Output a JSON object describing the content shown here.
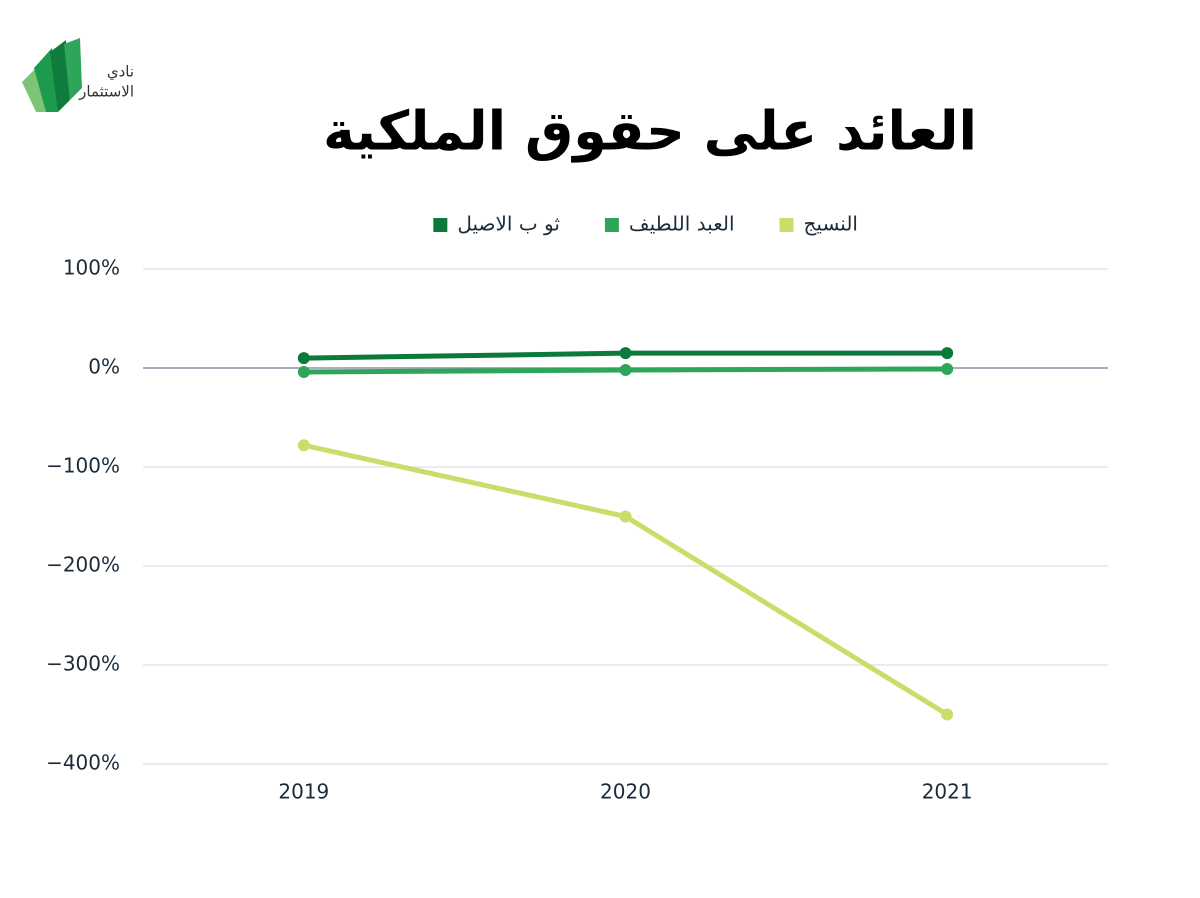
{
  "logo": {
    "line1": "نادي",
    "line2": "الاستثمار"
  },
  "chart_data": {
    "type": "line",
    "title": "العائد على حقوق الملكية",
    "categories": [
      "2019",
      "2020",
      "2021"
    ],
    "series": [
      {
        "name": "النسيج",
        "color": "#c8de6a",
        "values": [
          -78,
          -150,
          -350
        ]
      },
      {
        "name": "العبد اللطيف",
        "color": "#2ea65a",
        "values": [
          -4,
          -2,
          -1
        ]
      },
      {
        "name": "ثو ب الاصيل",
        "color": "#0b7a3b",
        "values": [
          10,
          15,
          15
        ]
      }
    ],
    "ylim": [
      -400,
      100
    ],
    "yticks": [
      {
        "value": 100,
        "label": "100%"
      },
      {
        "value": 0,
        "label": "0%"
      },
      {
        "value": -100,
        "label": "−100%"
      },
      {
        "value": -200,
        "label": "−200%"
      },
      {
        "value": -300,
        "label": "−300%"
      },
      {
        "value": -400,
        "label": "−400%"
      }
    ],
    "grid": true
  }
}
